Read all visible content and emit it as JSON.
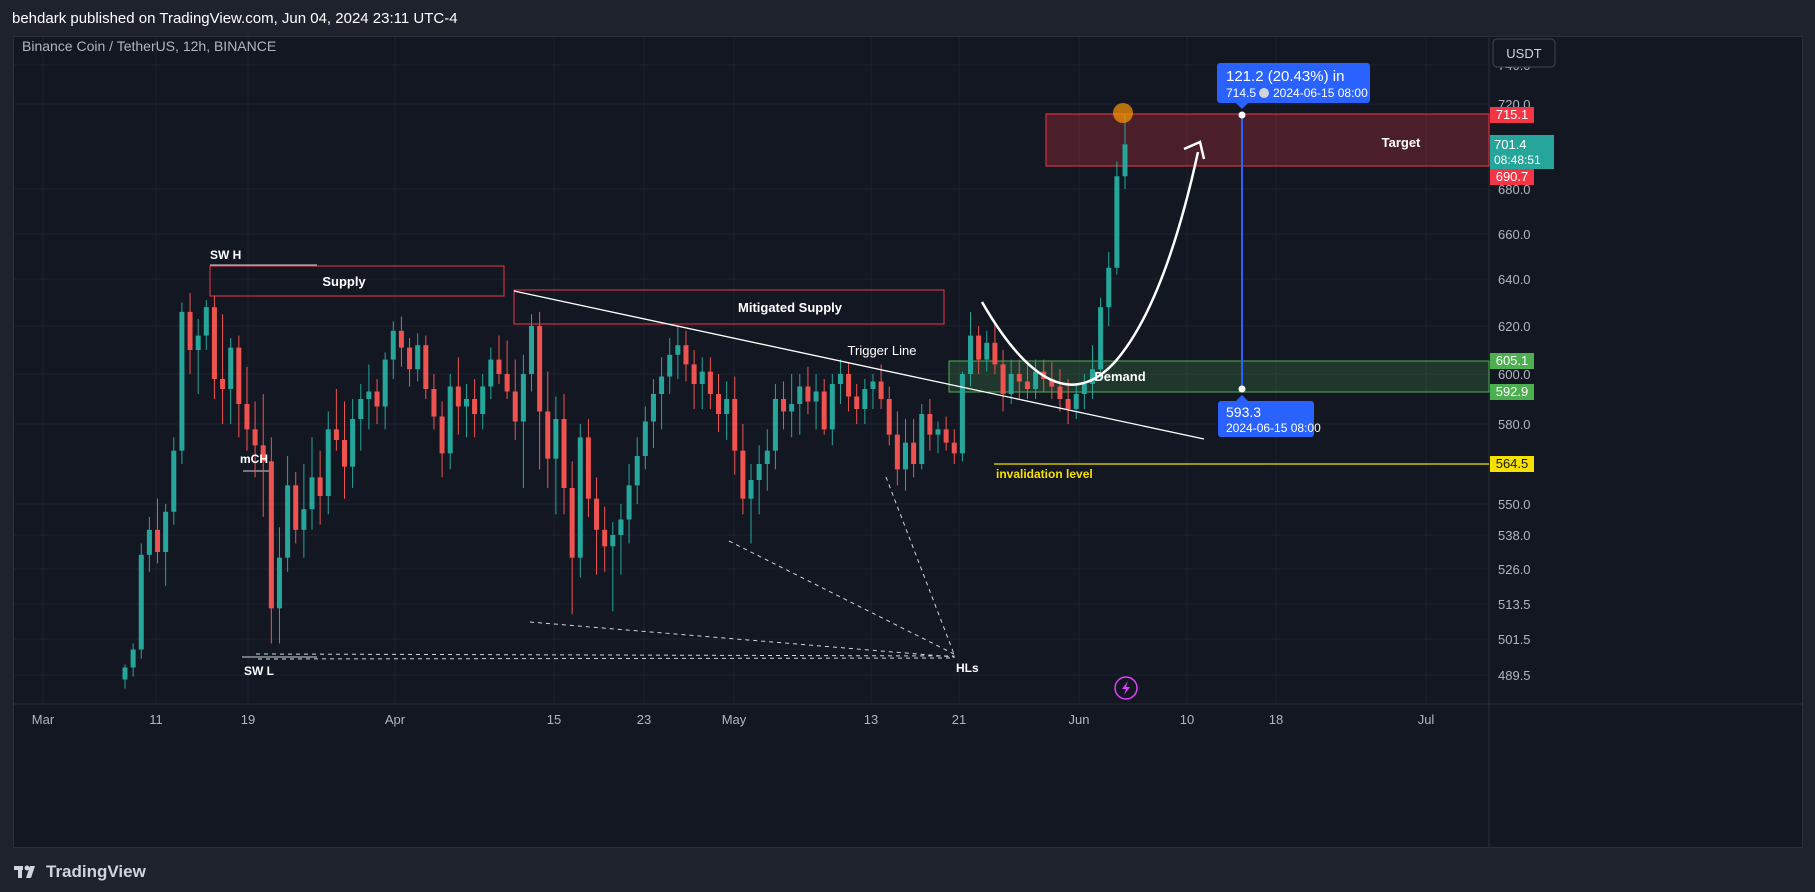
{
  "header": {
    "published_line": "behdark published on TradingView.com, Jun 04, 2024 23:11 UTC-4"
  },
  "chart": {
    "symbol_line": "Binance Coin / TetherUS, 12h, BINANCE",
    "currency_button": "USDT",
    "price_axis_ticks": [
      "740.0",
      "720.0",
      "680.0",
      "660.0",
      "640.0",
      "620.0",
      "600.0",
      "580.0",
      "550.0",
      "538.0",
      "526.0",
      "513.5",
      "501.5",
      "489.5"
    ],
    "time_axis_ticks": [
      "Mar",
      "11",
      "19",
      "Apr",
      "15",
      "23",
      "May",
      "13",
      "21",
      "Jun",
      "10",
      "18",
      "Jul"
    ],
    "price_badges": {
      "target_top": "715.1",
      "current_price": "701.4",
      "countdown": "08:48:51",
      "target_bottom": "690.7",
      "demand_top": "605.1",
      "demand_bottom": "592.9",
      "invalidation": "564.5"
    },
    "annotations": {
      "sw_h": "SW H",
      "supply": "Supply",
      "mitigated_supply": "Mitigated Supply",
      "trigger_line": "Trigger Line",
      "demand": "Demand",
      "target": "Target",
      "invalidation": "invalidation level",
      "mch": "mCH",
      "sw_l": "SW L",
      "hls": "HLs"
    },
    "measure_top": {
      "line1": "121.2 (20.43%) in",
      "price": "714.5",
      "datetime": "2024-06-15  08:00"
    },
    "measure_bottom": {
      "price": "593.3",
      "datetime": "2024-06-15 08:00"
    },
    "colors": {
      "up": "#26a69a",
      "down": "#ef5350",
      "background": "#131722",
      "supply_zone": "#f23645",
      "demand_zone": "#4caf50",
      "invalidation_line": "#f5e000",
      "measure_blue": "#2962ff"
    }
  },
  "chart_data": {
    "type": "candlestick",
    "series_interval": "12h",
    "candles": [
      [
        488,
        493,
        485,
        492
      ],
      [
        492,
        500,
        489,
        498
      ],
      [
        498,
        535,
        495,
        531
      ],
      [
        531,
        545,
        525,
        540
      ],
      [
        540,
        552,
        528,
        532
      ],
      [
        532,
        550,
        520,
        547
      ],
      [
        547,
        575,
        542,
        570
      ],
      [
        570,
        630,
        565,
        626
      ],
      [
        626,
        634,
        600,
        610
      ],
      [
        610,
        623,
        592,
        616
      ],
      [
        616,
        631,
        610,
        628
      ],
      [
        628,
        633,
        590,
        598
      ],
      [
        598,
        625,
        580,
        594
      ],
      [
        594,
        615,
        580,
        611
      ],
      [
        611,
        616,
        575,
        588
      ],
      [
        588,
        603,
        570,
        578
      ],
      [
        578,
        589,
        560,
        572
      ],
      [
        572,
        592,
        545,
        566
      ],
      [
        566,
        575,
        500,
        512
      ],
      [
        512,
        541,
        500,
        530
      ],
      [
        530,
        568,
        525,
        557
      ],
      [
        557,
        562,
        535,
        540
      ],
      [
        540,
        565,
        530,
        548
      ],
      [
        548,
        575,
        540,
        560
      ],
      [
        560,
        570,
        542,
        553
      ],
      [
        553,
        585,
        546,
        578
      ],
      [
        578,
        594,
        570,
        574
      ],
      [
        574,
        589,
        552,
        564
      ],
      [
        564,
        590,
        556,
        582
      ],
      [
        582,
        596,
        570,
        590
      ],
      [
        590,
        604,
        578,
        593
      ],
      [
        593,
        598,
        580,
        587
      ],
      [
        587,
        609,
        578,
        606
      ],
      [
        606,
        622,
        598,
        618
      ],
      [
        618,
        624,
        603,
        611
      ],
      [
        611,
        615,
        595,
        602
      ],
      [
        602,
        617,
        597,
        612
      ],
      [
        612,
        616,
        590,
        594
      ],
      [
        594,
        600,
        578,
        583
      ],
      [
        583,
        589,
        560,
        569
      ],
      [
        569,
        600,
        563,
        595
      ],
      [
        595,
        607,
        576,
        587
      ],
      [
        587,
        596,
        575,
        590
      ],
      [
        590,
        598,
        575,
        584
      ],
      [
        584,
        600,
        578,
        595
      ],
      [
        595,
        611,
        590,
        606
      ],
      [
        606,
        616,
        596,
        600
      ],
      [
        600,
        614,
        590,
        593
      ],
      [
        593,
        606,
        574,
        581
      ],
      [
        581,
        608,
        556,
        600
      ],
      [
        600,
        625,
        593,
        620
      ],
      [
        620,
        626,
        563,
        585
      ],
      [
        585,
        601,
        556,
        567
      ],
      [
        567,
        591,
        546,
        582
      ],
      [
        582,
        592,
        546,
        556
      ],
      [
        556,
        566,
        510,
        530
      ],
      [
        530,
        580,
        523,
        575
      ],
      [
        575,
        582,
        545,
        552
      ],
      [
        552,
        560,
        524,
        540
      ],
      [
        540,
        549,
        525,
        534
      ],
      [
        534,
        543,
        511,
        538
      ],
      [
        538,
        550,
        524,
        544
      ],
      [
        544,
        565,
        535,
        557
      ],
      [
        557,
        575,
        550,
        568
      ],
      [
        568,
        587,
        563,
        581
      ],
      [
        581,
        598,
        571,
        592
      ],
      [
        592,
        607,
        578,
        599
      ],
      [
        599,
        615,
        592,
        608
      ],
      [
        608,
        620,
        598,
        612
      ],
      [
        612,
        618,
        597,
        604
      ],
      [
        604,
        610,
        586,
        596
      ],
      [
        596,
        607,
        586,
        601
      ],
      [
        601,
        607,
        586,
        592
      ],
      [
        592,
        600,
        577,
        584
      ],
      [
        584,
        597,
        574,
        590
      ],
      [
        590,
        599,
        561,
        570
      ],
      [
        570,
        580,
        546,
        552
      ],
      [
        552,
        565,
        535,
        559
      ],
      [
        559,
        572,
        546,
        565
      ],
      [
        565,
        578,
        555,
        570
      ],
      [
        570,
        596,
        563,
        590
      ],
      [
        590,
        597,
        578,
        585
      ],
      [
        585,
        600,
        575,
        588
      ],
      [
        588,
        600,
        576,
        595
      ],
      [
        595,
        603,
        584,
        589
      ],
      [
        589,
        600,
        578,
        593
      ],
      [
        593,
        598,
        576,
        578
      ],
      [
        578,
        600,
        572,
        596
      ],
      [
        596,
        606,
        588,
        600
      ],
      [
        600,
        605,
        585,
        591
      ],
      [
        591,
        596,
        580,
        586
      ],
      [
        586,
        598,
        580,
        594
      ],
      [
        594,
        600,
        586,
        597
      ],
      [
        597,
        604,
        586,
        590
      ],
      [
        590,
        595,
        572,
        576
      ],
      [
        576,
        585,
        557,
        563
      ],
      [
        563,
        582,
        555,
        573
      ],
      [
        573,
        582,
        560,
        565
      ],
      [
        565,
        588,
        563,
        584
      ],
      [
        584,
        590,
        570,
        576
      ],
      [
        576,
        581,
        569,
        578
      ],
      [
        578,
        583,
        570,
        573
      ],
      [
        573,
        578,
        565,
        569
      ],
      [
        569,
        601,
        566,
        600
      ],
      [
        600,
        626,
        595,
        616
      ],
      [
        616,
        620,
        600,
        606
      ],
      [
        606,
        618,
        601,
        613
      ],
      [
        613,
        621,
        600,
        604
      ],
      [
        604,
        610,
        585,
        592
      ],
      [
        592,
        606,
        588,
        600
      ],
      [
        600,
        606,
        590,
        597
      ],
      [
        597,
        604,
        590,
        594
      ],
      [
        594,
        606,
        590,
        601
      ],
      [
        601,
        606,
        593,
        598
      ],
      [
        598,
        605,
        590,
        595
      ],
      [
        595,
        602,
        585,
        590
      ],
      [
        590,
        598,
        580,
        586
      ],
      [
        586,
        596,
        582,
        592
      ],
      [
        592,
        600,
        586,
        596
      ],
      [
        596,
        612,
        590,
        602
      ],
      [
        602,
        632,
        598,
        628
      ],
      [
        628,
        652,
        620,
        645
      ],
      [
        645,
        693,
        642,
        686
      ],
      [
        686,
        715,
        680,
        701
      ]
    ],
    "zones": [
      {
        "name": "Supply",
        "top": 643,
        "bottom": 631
      },
      {
        "name": "Mitigated Supply",
        "top": 633,
        "bottom": 619
      },
      {
        "name": "Target",
        "top": 715.1,
        "bottom": 690.7
      },
      {
        "name": "Demand",
        "top": 605.1,
        "bottom": 592.9
      }
    ],
    "invalidation_level": 564.5,
    "measure": {
      "from": 593.3,
      "to": 714.5,
      "change": 121.2,
      "change_pct": 20.43
    }
  }
}
